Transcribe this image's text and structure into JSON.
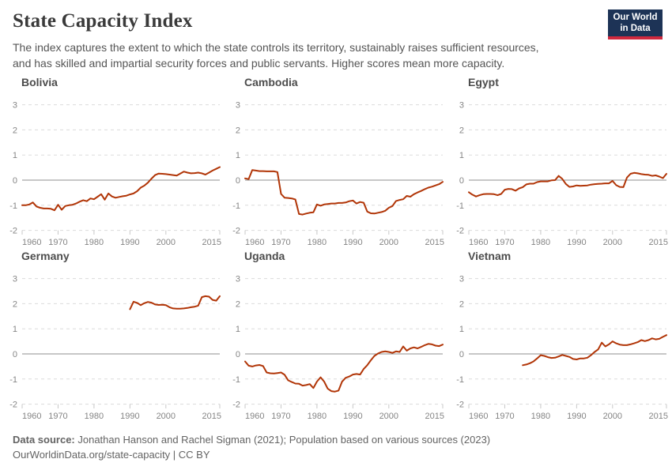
{
  "header": {
    "title": "State Capacity Index",
    "subtitle_lines": [
      "The index captures the extent to which the state controls its territory, sustainably raises sufficient resources,",
      "and has skilled and impartial security forces and public servants. Higher scores mean more capacity."
    ]
  },
  "logo": {
    "line1": "Our World",
    "line2": "in Data"
  },
  "footer": {
    "source_label": "Data source:",
    "source_text": " Jonathan Hanson and Rachel Sigman (2021); Population based on various sources (2023)",
    "link_line": "OurWorldinData.org/state-capacity | CC BY"
  },
  "colors": {
    "line": "#b13507",
    "grid": "#dcdcdc",
    "zero_line": "#8f8f8f",
    "tick_mark": "#c8c8c8",
    "axis_label": "#858585",
    "panel_title": "#4d4d4d",
    "logo_bg": "#1d3356",
    "logo_stripe": "#d0293e"
  },
  "chart_data": {
    "type": "line",
    "title": "State Capacity Index",
    "x_domain": [
      1960,
      2015
    ],
    "y_domain": [
      -2,
      3
    ],
    "x_ticks": [
      1960,
      1970,
      1980,
      1990,
      2000,
      2015
    ],
    "y_ticks": [
      3,
      2,
      1,
      0,
      -1,
      -2
    ],
    "grid": "horizontal dashed, solid line at 0",
    "legend": "none (one series per small-multiple panel)",
    "panels": [
      {
        "name": "Bolivia",
        "points": [
          [
            1960,
            -1.0
          ],
          [
            1961,
            -1.0
          ],
          [
            1962,
            -0.97
          ],
          [
            1963,
            -0.89
          ],
          [
            1964,
            -1.05
          ],
          [
            1965,
            -1.1
          ],
          [
            1966,
            -1.13
          ],
          [
            1967,
            -1.13
          ],
          [
            1968,
            -1.14
          ],
          [
            1969,
            -1.2
          ],
          [
            1970,
            -0.98
          ],
          [
            1971,
            -1.18
          ],
          [
            1972,
            -1.03
          ],
          [
            1973,
            -1.0
          ],
          [
            1974,
            -0.98
          ],
          [
            1975,
            -0.93
          ],
          [
            1976,
            -0.86
          ],
          [
            1977,
            -0.8
          ],
          [
            1978,
            -0.84
          ],
          [
            1979,
            -0.73
          ],
          [
            1980,
            -0.76
          ],
          [
            1981,
            -0.66
          ],
          [
            1982,
            -0.56
          ],
          [
            1983,
            -0.78
          ],
          [
            1984,
            -0.53
          ],
          [
            1985,
            -0.65
          ],
          [
            1986,
            -0.7
          ],
          [
            1987,
            -0.67
          ],
          [
            1988,
            -0.64
          ],
          [
            1989,
            -0.62
          ],
          [
            1990,
            -0.57
          ],
          [
            1991,
            -0.53
          ],
          [
            1992,
            -0.44
          ],
          [
            1993,
            -0.3
          ],
          [
            1994,
            -0.22
          ],
          [
            1995,
            -0.1
          ],
          [
            1996,
            0.06
          ],
          [
            1997,
            0.2
          ],
          [
            1998,
            0.26
          ],
          [
            1999,
            0.25
          ],
          [
            2000,
            0.24
          ],
          [
            2001,
            0.22
          ],
          [
            2002,
            0.2
          ],
          [
            2003,
            0.18
          ],
          [
            2004,
            0.26
          ],
          [
            2005,
            0.34
          ],
          [
            2006,
            0.3
          ],
          [
            2007,
            0.27
          ],
          [
            2008,
            0.28
          ],
          [
            2009,
            0.3
          ],
          [
            2010,
            0.27
          ],
          [
            2011,
            0.22
          ],
          [
            2012,
            0.3
          ],
          [
            2013,
            0.38
          ],
          [
            2014,
            0.45
          ],
          [
            2015,
            0.52
          ]
        ]
      },
      {
        "name": "Cambodia",
        "points": [
          [
            1960,
            0.07
          ],
          [
            1961,
            0.04
          ],
          [
            1962,
            0.4
          ],
          [
            1963,
            0.38
          ],
          [
            1964,
            0.36
          ],
          [
            1965,
            0.36
          ],
          [
            1966,
            0.35
          ],
          [
            1967,
            0.35
          ],
          [
            1968,
            0.35
          ],
          [
            1969,
            0.32
          ],
          [
            1970,
            -0.55
          ],
          [
            1971,
            -0.7
          ],
          [
            1972,
            -0.71
          ],
          [
            1973,
            -0.73
          ],
          [
            1974,
            -0.77
          ],
          [
            1975,
            -1.35
          ],
          [
            1976,
            -1.37
          ],
          [
            1977,
            -1.33
          ],
          [
            1978,
            -1.3
          ],
          [
            1979,
            -1.28
          ],
          [
            1980,
            -0.97
          ],
          [
            1981,
            -1.02
          ],
          [
            1982,
            -0.97
          ],
          [
            1983,
            -0.95
          ],
          [
            1984,
            -0.93
          ],
          [
            1985,
            -0.93
          ],
          [
            1986,
            -0.91
          ],
          [
            1987,
            -0.91
          ],
          [
            1988,
            -0.89
          ],
          [
            1989,
            -0.84
          ],
          [
            1990,
            -0.81
          ],
          [
            1991,
            -0.93
          ],
          [
            1992,
            -0.87
          ],
          [
            1993,
            -0.9
          ],
          [
            1994,
            -1.25
          ],
          [
            1995,
            -1.32
          ],
          [
            1996,
            -1.33
          ],
          [
            1997,
            -1.3
          ],
          [
            1998,
            -1.27
          ],
          [
            1999,
            -1.22
          ],
          [
            2000,
            -1.1
          ],
          [
            2001,
            -1.03
          ],
          [
            2002,
            -0.83
          ],
          [
            2003,
            -0.79
          ],
          [
            2004,
            -0.76
          ],
          [
            2005,
            -0.63
          ],
          [
            2006,
            -0.66
          ],
          [
            2007,
            -0.56
          ],
          [
            2008,
            -0.49
          ],
          [
            2009,
            -0.43
          ],
          [
            2010,
            -0.36
          ],
          [
            2011,
            -0.3
          ],
          [
            2012,
            -0.26
          ],
          [
            2013,
            -0.21
          ],
          [
            2014,
            -0.16
          ],
          [
            2015,
            -0.07
          ]
        ]
      },
      {
        "name": "Egypt",
        "points": [
          [
            1960,
            -0.48
          ],
          [
            1961,
            -0.58
          ],
          [
            1962,
            -0.65
          ],
          [
            1963,
            -0.6
          ],
          [
            1964,
            -0.56
          ],
          [
            1965,
            -0.55
          ],
          [
            1966,
            -0.55
          ],
          [
            1967,
            -0.56
          ],
          [
            1968,
            -0.6
          ],
          [
            1969,
            -0.55
          ],
          [
            1970,
            -0.38
          ],
          [
            1971,
            -0.35
          ],
          [
            1972,
            -0.36
          ],
          [
            1973,
            -0.42
          ],
          [
            1974,
            -0.33
          ],
          [
            1975,
            -0.28
          ],
          [
            1976,
            -0.17
          ],
          [
            1977,
            -0.14
          ],
          [
            1978,
            -0.14
          ],
          [
            1979,
            -0.08
          ],
          [
            1980,
            -0.05
          ],
          [
            1981,
            -0.05
          ],
          [
            1982,
            -0.05
          ],
          [
            1983,
            -0.01
          ],
          [
            1984,
            0.0
          ],
          [
            1985,
            0.17
          ],
          [
            1986,
            0.05
          ],
          [
            1987,
            -0.15
          ],
          [
            1988,
            -0.27
          ],
          [
            1989,
            -0.25
          ],
          [
            1990,
            -0.21
          ],
          [
            1991,
            -0.23
          ],
          [
            1992,
            -0.22
          ],
          [
            1993,
            -0.21
          ],
          [
            1994,
            -0.18
          ],
          [
            1995,
            -0.16
          ],
          [
            1996,
            -0.15
          ],
          [
            1997,
            -0.14
          ],
          [
            1998,
            -0.13
          ],
          [
            1999,
            -0.13
          ],
          [
            2000,
            -0.03
          ],
          [
            2001,
            -0.2
          ],
          [
            2002,
            -0.27
          ],
          [
            2003,
            -0.28
          ],
          [
            2004,
            0.1
          ],
          [
            2005,
            0.25
          ],
          [
            2006,
            0.29
          ],
          [
            2007,
            0.27
          ],
          [
            2008,
            0.24
          ],
          [
            2009,
            0.22
          ],
          [
            2010,
            0.21
          ],
          [
            2011,
            0.17
          ],
          [
            2012,
            0.19
          ],
          [
            2013,
            0.14
          ],
          [
            2014,
            0.08
          ],
          [
            2015,
            0.25
          ]
        ]
      },
      {
        "name": "Germany",
        "points": [
          [
            1990,
            1.78
          ],
          [
            1991,
            2.08
          ],
          [
            1992,
            2.03
          ],
          [
            1993,
            1.94
          ],
          [
            1994,
            2.02
          ],
          [
            1995,
            2.07
          ],
          [
            1996,
            2.04
          ],
          [
            1997,
            1.97
          ],
          [
            1998,
            1.95
          ],
          [
            1999,
            1.96
          ],
          [
            2000,
            1.94
          ],
          [
            2001,
            1.86
          ],
          [
            2002,
            1.81
          ],
          [
            2003,
            1.8
          ],
          [
            2004,
            1.8
          ],
          [
            2005,
            1.81
          ],
          [
            2006,
            1.83
          ],
          [
            2007,
            1.86
          ],
          [
            2008,
            1.88
          ],
          [
            2009,
            1.92
          ],
          [
            2010,
            2.26
          ],
          [
            2011,
            2.3
          ],
          [
            2012,
            2.28
          ],
          [
            2013,
            2.15
          ],
          [
            2014,
            2.12
          ],
          [
            2015,
            2.3
          ]
        ]
      },
      {
        "name": "Uganda",
        "points": [
          [
            1960,
            -0.3
          ],
          [
            1961,
            -0.47
          ],
          [
            1962,
            -0.5
          ],
          [
            1963,
            -0.46
          ],
          [
            1964,
            -0.44
          ],
          [
            1965,
            -0.48
          ],
          [
            1966,
            -0.74
          ],
          [
            1967,
            -0.77
          ],
          [
            1968,
            -0.78
          ],
          [
            1969,
            -0.76
          ],
          [
            1970,
            -0.74
          ],
          [
            1971,
            -0.83
          ],
          [
            1972,
            -1.05
          ],
          [
            1973,
            -1.12
          ],
          [
            1974,
            -1.18
          ],
          [
            1975,
            -1.19
          ],
          [
            1976,
            -1.26
          ],
          [
            1977,
            -1.24
          ],
          [
            1978,
            -1.2
          ],
          [
            1979,
            -1.36
          ],
          [
            1980,
            -1.1
          ],
          [
            1981,
            -0.93
          ],
          [
            1982,
            -1.1
          ],
          [
            1983,
            -1.38
          ],
          [
            1984,
            -1.48
          ],
          [
            1985,
            -1.5
          ],
          [
            1986,
            -1.46
          ],
          [
            1987,
            -1.1
          ],
          [
            1988,
            -0.95
          ],
          [
            1989,
            -0.9
          ],
          [
            1990,
            -0.82
          ],
          [
            1991,
            -0.8
          ],
          [
            1992,
            -0.82
          ],
          [
            1993,
            -0.6
          ],
          [
            1994,
            -0.45
          ],
          [
            1995,
            -0.25
          ],
          [
            1996,
            -0.08
          ],
          [
            1997,
            0.02
          ],
          [
            1998,
            0.08
          ],
          [
            1999,
            0.1
          ],
          [
            2000,
            0.08
          ],
          [
            2001,
            0.04
          ],
          [
            2002,
            0.1
          ],
          [
            2003,
            0.08
          ],
          [
            2004,
            0.3
          ],
          [
            2005,
            0.13
          ],
          [
            2006,
            0.22
          ],
          [
            2007,
            0.26
          ],
          [
            2008,
            0.22
          ],
          [
            2009,
            0.28
          ],
          [
            2010,
            0.35
          ],
          [
            2011,
            0.4
          ],
          [
            2012,
            0.38
          ],
          [
            2013,
            0.33
          ],
          [
            2014,
            0.31
          ],
          [
            2015,
            0.37
          ]
        ]
      },
      {
        "name": "Vietnam",
        "points": [
          [
            1975,
            -0.45
          ],
          [
            1976,
            -0.42
          ],
          [
            1977,
            -0.37
          ],
          [
            1978,
            -0.3
          ],
          [
            1979,
            -0.18
          ],
          [
            1980,
            -0.05
          ],
          [
            1981,
            -0.08
          ],
          [
            1982,
            -0.13
          ],
          [
            1983,
            -0.16
          ],
          [
            1984,
            -0.15
          ],
          [
            1985,
            -0.1
          ],
          [
            1986,
            -0.04
          ],
          [
            1987,
            -0.08
          ],
          [
            1988,
            -0.12
          ],
          [
            1989,
            -0.2
          ],
          [
            1990,
            -0.22
          ],
          [
            1991,
            -0.18
          ],
          [
            1992,
            -0.18
          ],
          [
            1993,
            -0.15
          ],
          [
            1994,
            -0.05
          ],
          [
            1995,
            0.08
          ],
          [
            1996,
            0.18
          ],
          [
            1997,
            0.45
          ],
          [
            1998,
            0.3
          ],
          [
            1999,
            0.38
          ],
          [
            2000,
            0.5
          ],
          [
            2001,
            0.42
          ],
          [
            2002,
            0.37
          ],
          [
            2003,
            0.35
          ],
          [
            2004,
            0.35
          ],
          [
            2005,
            0.38
          ],
          [
            2006,
            0.42
          ],
          [
            2007,
            0.47
          ],
          [
            2008,
            0.55
          ],
          [
            2009,
            0.51
          ],
          [
            2010,
            0.55
          ],
          [
            2011,
            0.62
          ],
          [
            2012,
            0.58
          ],
          [
            2013,
            0.6
          ],
          [
            2014,
            0.68
          ],
          [
            2015,
            0.75
          ]
        ]
      }
    ]
  }
}
